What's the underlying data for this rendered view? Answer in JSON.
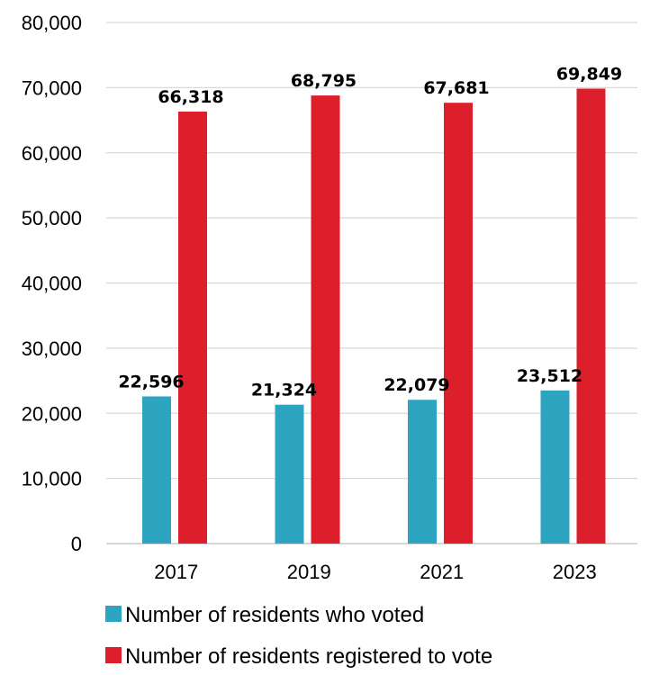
{
  "chart_data": {
    "type": "bar",
    "title": "",
    "xlabel": "",
    "ylabel": "",
    "categories": [
      "2017",
      "2019",
      "2021",
      "2023"
    ],
    "series": [
      {
        "name": "Number of residents who voted",
        "values": [
          22596,
          21324,
          22079,
          23512
        ],
        "labels": [
          "22,596",
          "21,324",
          "22,079",
          "23,512"
        ],
        "color": "#2da5c0"
      },
      {
        "name": "Number of residents registered to vote",
        "values": [
          66318,
          68795,
          67681,
          69849
        ],
        "labels": [
          "66,318",
          "68,795",
          "67,681",
          "69,849"
        ],
        "color": "#dc1f2b"
      }
    ],
    "ylim": [
      0,
      80000
    ],
    "yticks": [
      0,
      10000,
      20000,
      30000,
      40000,
      50000,
      60000,
      70000,
      80000
    ],
    "ytick_labels": [
      "0",
      "10,000",
      "20,000",
      "30,000",
      "40,000",
      "50,000",
      "60,000",
      "70,000",
      "80,000"
    ],
    "grid": true,
    "grid_color": "#d9d9d9",
    "legend_position": "bottom"
  }
}
